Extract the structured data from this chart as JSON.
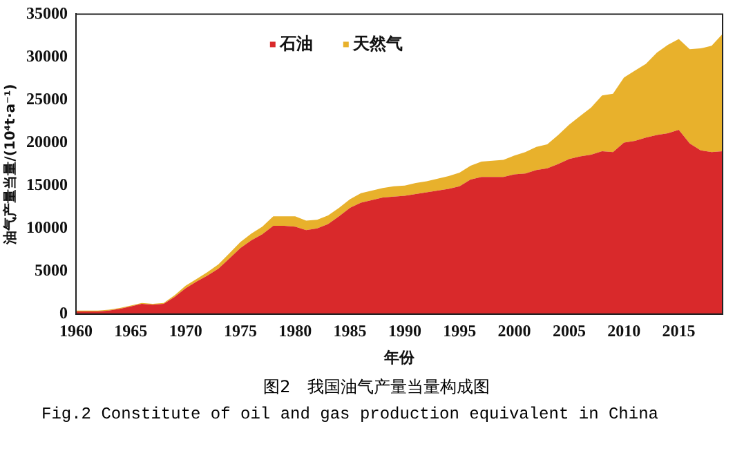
{
  "chart_data": {
    "type": "area",
    "stacked": true,
    "title": "图2　我国油气产量当量构成图",
    "annotations": [
      "Fig.2 Constitute of oil and gas production equivalent in China"
    ],
    "xlabel": "年份",
    "ylabel": "油气产量当量/(10⁴t·a⁻¹)",
    "x": [
      1960,
      1961,
      1962,
      1963,
      1964,
      1965,
      1966,
      1967,
      1968,
      1969,
      1970,
      1971,
      1972,
      1973,
      1974,
      1975,
      1976,
      1977,
      1978,
      1979,
      1980,
      1981,
      1982,
      1983,
      1984,
      1985,
      1986,
      1987,
      1988,
      1989,
      1990,
      1991,
      1992,
      1993,
      1994,
      1995,
      1996,
      1997,
      1998,
      1999,
      2000,
      2001,
      2002,
      2003,
      2004,
      2005,
      2006,
      2007,
      2008,
      2009,
      2010,
      2011,
      2012,
      2013,
      2014,
      2015,
      2016,
      2017,
      2018,
      2019
    ],
    "series": [
      {
        "name": "石油",
        "color": "#d9292b",
        "values": [
          300,
          300,
          300,
          400,
          600,
          900,
          1200,
          1100,
          1200,
          2000,
          3000,
          3800,
          4500,
          5300,
          6500,
          7700,
          8600,
          9300,
          10300,
          10300,
          10200,
          9800,
          10000,
          10500,
          11400,
          12400,
          13000,
          13300,
          13600,
          13700,
          13800,
          14000,
          14200,
          14400,
          14600,
          14900,
          15700,
          16000,
          16000,
          16000,
          16300,
          16400,
          16800,
          17000,
          17500,
          18100,
          18400,
          18600,
          19000,
          18900,
          20000,
          20200,
          20600,
          20900,
          21100,
          21500,
          19900,
          19100,
          18900,
          19000
        ]
      },
      {
        "name": "天然气",
        "color": "#e8b12c",
        "values": [
          100,
          100,
          100,
          100,
          100,
          100,
          100,
          100,
          100,
          200,
          300,
          300,
          400,
          500,
          600,
          700,
          800,
          900,
          1100,
          1100,
          1200,
          1100,
          1000,
          1000,
          1000,
          1000,
          1100,
          1100,
          1100,
          1200,
          1200,
          1300,
          1300,
          1400,
          1500,
          1600,
          1600,
          1800,
          1900,
          2000,
          2200,
          2500,
          2700,
          2800,
          3400,
          4000,
          4700,
          5500,
          6500,
          6800,
          7600,
          8200,
          8600,
          9600,
          10300,
          10600,
          11000,
          11900,
          12400,
          13700
        ]
      }
    ],
    "xlim": [
      1960,
      2019
    ],
    "xticks": [
      1960,
      1965,
      1970,
      1975,
      1980,
      1985,
      1990,
      1995,
      2000,
      2005,
      2010,
      2015
    ],
    "ylim": [
      0,
      35000
    ],
    "yticks": [
      0,
      5000,
      10000,
      15000,
      20000,
      25000,
      30000,
      35000
    ],
    "grid": false,
    "legend": "top left",
    "marker": "none"
  }
}
